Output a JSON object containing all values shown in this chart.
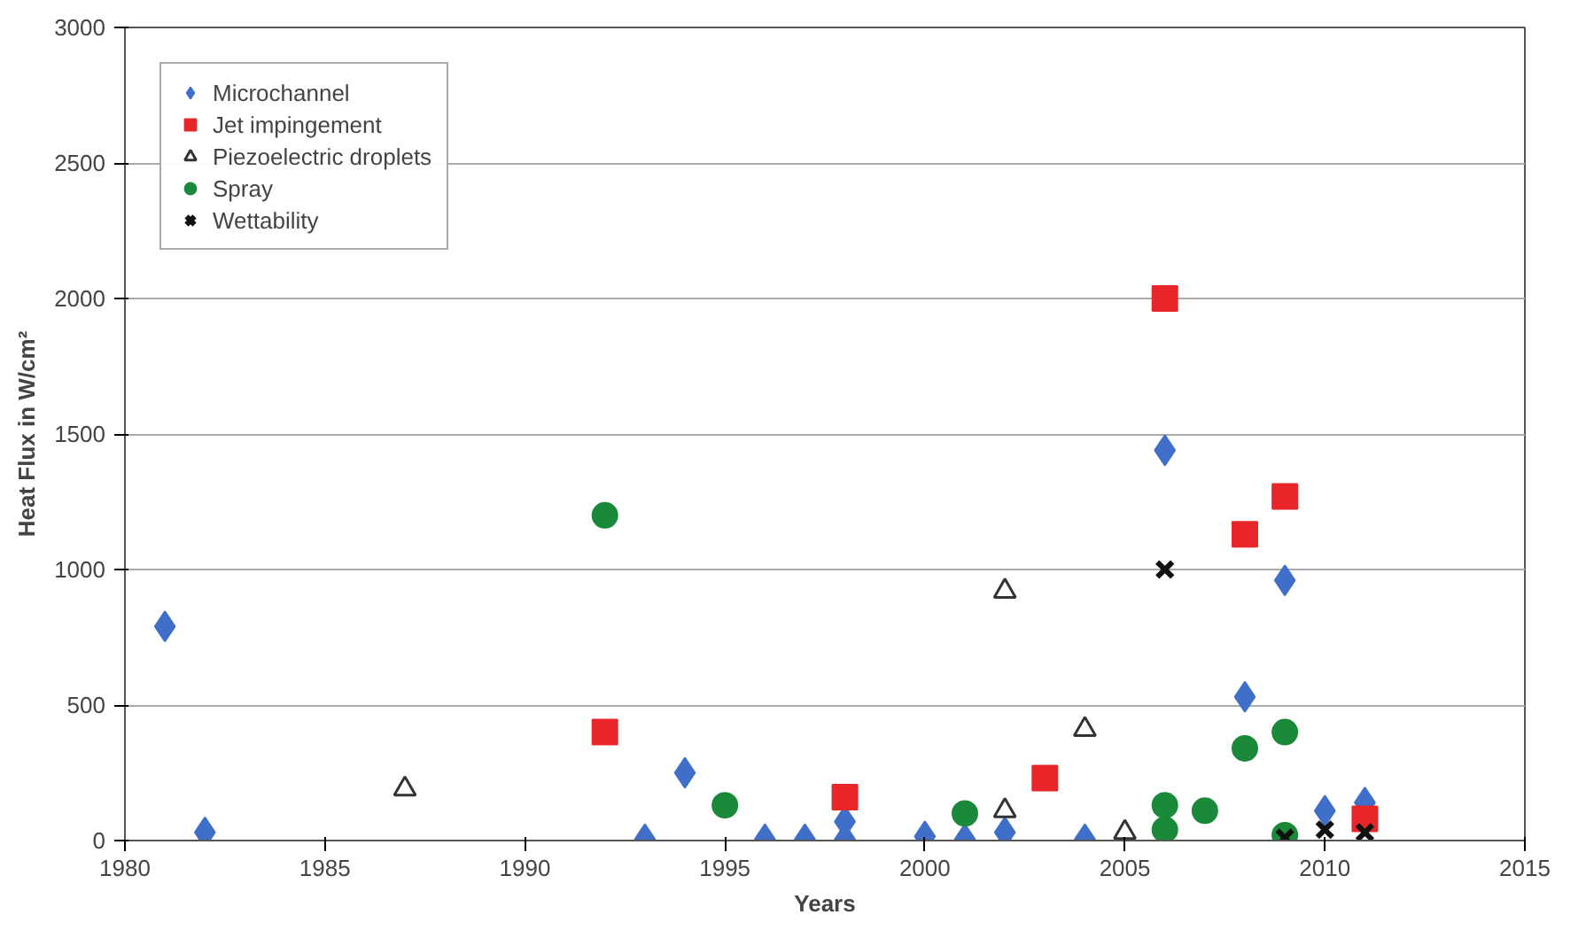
{
  "chart_data": {
    "type": "scatter",
    "xlabel": "Years",
    "ylabel": "Heat Flux in W/cm²",
    "xlim": [
      1980,
      2015
    ],
    "xticks": [
      1980,
      1985,
      1990,
      1995,
      2000,
      2005,
      2010,
      2015
    ],
    "ylim": [
      0,
      3000
    ],
    "yticks": [
      0,
      500,
      1000,
      1500,
      2000,
      2500,
      3000
    ],
    "grid": "y",
    "legend": "top left",
    "series": [
      {
        "name": "Microchannel",
        "color": "#3f6fc9",
        "marker": "diamond",
        "x": [
          1981,
          1982,
          1993,
          1994,
          1996,
          1997,
          1998,
          1998,
          2000,
          2001,
          2002,
          2004,
          2006,
          2008,
          2009,
          2010,
          2011
        ],
        "values": [
          790,
          30,
          5,
          250,
          5,
          5,
          5,
          70,
          15,
          5,
          30,
          5,
          1440,
          530,
          960,
          110,
          140
        ]
      },
      {
        "name": "Jet impingement",
        "color": "#e8262a",
        "marker": "square",
        "x": [
          1992,
          1998,
          2003,
          2006,
          2008,
          2009,
          2011
        ],
        "values": [
          400,
          160,
          230,
          2000,
          1130,
          1270,
          80
        ]
      },
      {
        "name": "Piezoelectric droplets",
        "color": "#333333",
        "marker": "triangle",
        "x": [
          1987,
          2002,
          2002,
          2004,
          2005
        ],
        "values": [
          190,
          920,
          110,
          410,
          30
        ]
      },
      {
        "name": "Spray",
        "color": "#1a8a3a",
        "marker": "circle",
        "x": [
          1992,
          1995,
          2001,
          2006,
          2006,
          2007,
          2008,
          2009,
          2009
        ],
        "values": [
          1200,
          130,
          100,
          130,
          40,
          110,
          340,
          400,
          20
        ]
      },
      {
        "name": "Wettability",
        "color": "#111111",
        "marker": "x",
        "x": [
          2006,
          2009,
          2010,
          2011
        ],
        "values": [
          1000,
          10,
          40,
          30
        ]
      }
    ]
  }
}
